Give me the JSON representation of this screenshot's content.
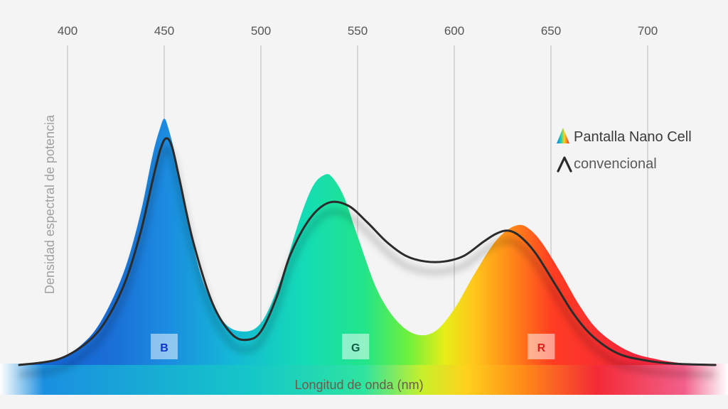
{
  "chart_data": {
    "type": "area",
    "xlabel": "Longitud de onda (nm)",
    "ylabel": "Densidad espectral de potencia",
    "xlim": [
      365,
      740
    ],
    "ylim": [
      0,
      1
    ],
    "x_ticks": [
      400,
      450,
      500,
      550,
      600,
      650,
      700
    ],
    "grid": true,
    "legend_position": "top-right",
    "legend": [
      {
        "label": "Pantalla Nano Cell",
        "icon": "spectrum-triangle-icon"
      },
      {
        "label": "convencional",
        "icon": "chevron-line-icon"
      }
    ],
    "series": [
      {
        "name": "Pantalla Nano Cell",
        "style": "spectral-gradient-area",
        "x": [
          375,
          395,
          410,
          420,
          430,
          438,
          444,
          448,
          450,
          452,
          456,
          462,
          470,
          480,
          490,
          500,
          510,
          520,
          527,
          533,
          537,
          543,
          550,
          560,
          570,
          580,
          590,
          600,
          610,
          620,
          627,
          633,
          638,
          645,
          655,
          665,
          675,
          690,
          705,
          720,
          735
        ],
        "values": [
          0.0,
          0.02,
          0.09,
          0.19,
          0.35,
          0.55,
          0.75,
          0.85,
          0.88,
          0.85,
          0.74,
          0.52,
          0.3,
          0.16,
          0.12,
          0.15,
          0.3,
          0.52,
          0.64,
          0.68,
          0.67,
          0.6,
          0.46,
          0.27,
          0.16,
          0.11,
          0.12,
          0.2,
          0.32,
          0.43,
          0.48,
          0.5,
          0.49,
          0.44,
          0.33,
          0.21,
          0.12,
          0.05,
          0.02,
          0.005,
          0.0
        ]
      },
      {
        "name": "convencional",
        "style": "dark-line",
        "x": [
          375,
          395,
          410,
          420,
          430,
          438,
          444,
          448,
          451,
          454,
          458,
          465,
          475,
          485,
          493,
          500,
          508,
          515,
          525,
          535,
          545,
          555,
          565,
          575,
          585,
          595,
          605,
          615,
          622,
          628,
          634,
          642,
          652,
          662,
          672,
          685,
          700,
          715,
          735
        ],
        "values": [
          0.0,
          0.02,
          0.08,
          0.16,
          0.3,
          0.48,
          0.66,
          0.77,
          0.81,
          0.78,
          0.66,
          0.44,
          0.22,
          0.11,
          0.09,
          0.12,
          0.24,
          0.39,
          0.52,
          0.58,
          0.57,
          0.51,
          0.44,
          0.39,
          0.37,
          0.37,
          0.39,
          0.44,
          0.47,
          0.48,
          0.46,
          0.4,
          0.29,
          0.18,
          0.1,
          0.04,
          0.015,
          0.004,
          0.0
        ]
      }
    ],
    "band_markers": [
      {
        "label": "B",
        "x": 450,
        "color": "#1d6fd6",
        "text_color": "#0b35c9"
      },
      {
        "label": "G",
        "x": 549,
        "color": "#30d6b0",
        "text_color": "#0c5e46"
      },
      {
        "label": "R",
        "x": 645,
        "color": "#ff8a2a",
        "text_color": "#e0201c"
      }
    ]
  }
}
